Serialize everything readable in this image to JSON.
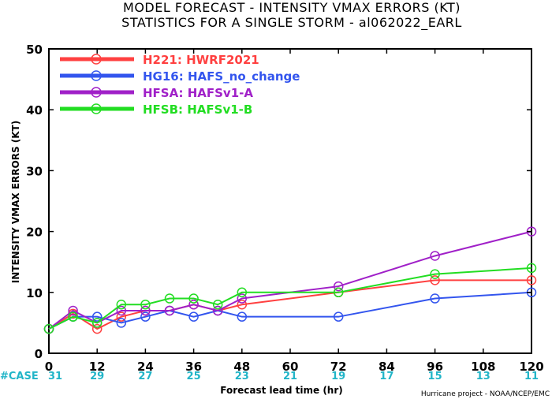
{
  "title_line1": "MODEL FORECAST - INTENSITY VMAX ERRORS (KT)",
  "title_line2": "STATISTICS FOR A SINGLE STORM - al062022_EARL",
  "case_label": "#CASE",
  "credit": "Hurricane project - NOAA/NCEP/EMC",
  "colors": {
    "case_label": "#22b5c8",
    "case_values": "#22b5c8"
  },
  "chart_data": {
    "type": "line",
    "title": "MODEL FORECAST - INTENSITY VMAX ERRORS (KT)",
    "subtitle": "STATISTICS FOR A SINGLE STORM - al062022_EARL",
    "xlabel": "Forecast lead time (hr)",
    "ylabel": "INTENSITY VMAX ERRORS (KT)",
    "xlim": [
      0,
      120
    ],
    "ylim": [
      0,
      50
    ],
    "xticks": [
      0,
      12,
      24,
      36,
      48,
      60,
      72,
      84,
      96,
      108,
      120
    ],
    "yticks": [
      0,
      10,
      20,
      30,
      40,
      50
    ],
    "grid": false,
    "legend_position": "top-left",
    "cases": [
      {
        "x": 0,
        "n": "31"
      },
      {
        "x": 12,
        "n": "29"
      },
      {
        "x": 24,
        "n": "27"
      },
      {
        "x": 36,
        "n": "25"
      },
      {
        "x": 48,
        "n": "23"
      },
      {
        "x": 60,
        "n": "21"
      },
      {
        "x": 72,
        "n": "19"
      },
      {
        "x": 84,
        "n": "17"
      },
      {
        "x": 96,
        "n": "15"
      },
      {
        "x": 108,
        "n": "13"
      },
      {
        "x": 120,
        "n": "11"
      }
    ],
    "series": [
      {
        "name": "H221: HWRF2021",
        "color": "#ff4040",
        "x": [
          0,
          6,
          12,
          18,
          24,
          30,
          36,
          42,
          48,
          72,
          96,
          120
        ],
        "y": [
          4,
          6.5,
          4,
          6,
          7,
          7,
          8,
          7,
          8,
          10,
          12,
          12
        ]
      },
      {
        "name": "HG16: HAFS_no_change",
        "color": "#3355ee",
        "x": [
          0,
          6,
          12,
          18,
          24,
          30,
          36,
          42,
          48,
          72,
          96,
          120
        ],
        "y": [
          4,
          6,
          6,
          5,
          6,
          7,
          6,
          7,
          6,
          6,
          9,
          10
        ]
      },
      {
        "name": "HFSA: HAFSv1-A",
        "color": "#a020c8",
        "x": [
          0,
          6,
          12,
          18,
          24,
          30,
          36,
          42,
          48,
          72,
          96,
          120
        ],
        "y": [
          4,
          7,
          5,
          7,
          7,
          7,
          8,
          7,
          9,
          11,
          16,
          20
        ]
      },
      {
        "name": "HFSB: HAFSv1-B",
        "color": "#22dd22",
        "x": [
          0,
          6,
          12,
          18,
          24,
          30,
          36,
          42,
          48,
          72,
          96,
          120
        ],
        "y": [
          4,
          6,
          5,
          8,
          8,
          9,
          9,
          8,
          10,
          10,
          13,
          14
        ]
      }
    ]
  }
}
